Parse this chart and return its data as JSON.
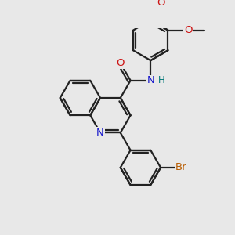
{
  "bg_color": "#e8e8e8",
  "bond_lw": 1.6,
  "atom_colors": {
    "N": "#1a1acc",
    "O": "#cc1111",
    "Br": "#b85c00",
    "H": "#007777"
  },
  "font_size": 9.5,
  "font_size_H": 8.5,
  "xlim": [
    -3.5,
    5.5
  ],
  "ylim": [
    -3.8,
    5.2
  ]
}
